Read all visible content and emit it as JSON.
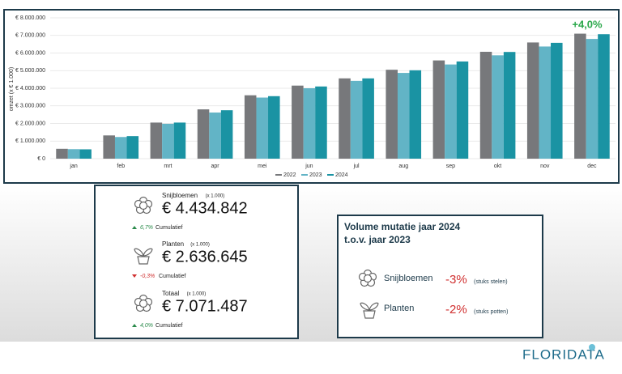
{
  "chart_data": {
    "type": "bar",
    "y_label": "omzet (x € 1.000)",
    "annotation": "+4,0%",
    "categories": [
      "jan",
      "feb",
      "mrt",
      "apr",
      "mei",
      "jun",
      "jul",
      "aug",
      "sep",
      "okt",
      "nov",
      "dec"
    ],
    "series": [
      {
        "name": "2022",
        "color": "#77787b",
        "values": [
          560000,
          1320000,
          2050000,
          2800000,
          3600000,
          4150000,
          4560000,
          5050000,
          5580000,
          6070000,
          6600000,
          7100000
        ]
      },
      {
        "name": "2023",
        "color": "#62b4c6",
        "values": [
          540000,
          1230000,
          1980000,
          2620000,
          3470000,
          4000000,
          4420000,
          4870000,
          5350000,
          5870000,
          6370000,
          6800000
        ]
      },
      {
        "name": "2024",
        "color": "#1a93a3",
        "values": [
          530000,
          1280000,
          2050000,
          2750000,
          3550000,
          4100000,
          4560000,
          5020000,
          5520000,
          6060000,
          6580000,
          7070000
        ]
      }
    ],
    "ylim": [
      0,
      8000000
    ],
    "yticks": [
      {
        "value": 0,
        "label": "€ 0"
      },
      {
        "value": 1000000,
        "label": "€ 1.000.000"
      },
      {
        "value": 2000000,
        "label": "€ 2.000.000"
      },
      {
        "value": 3000000,
        "label": "€ 3.000.000"
      },
      {
        "value": 4000000,
        "label": "€ 4.000.000"
      },
      {
        "value": 5000000,
        "label": "€ 5.000.000"
      },
      {
        "value": 6000000,
        "label": "€ 6.000.000"
      },
      {
        "value": 7000000,
        "label": "€ 7.000.000"
      },
      {
        "value": 8000000,
        "label": "€ 8.000.000"
      }
    ],
    "grid": true,
    "legend": "bottom"
  },
  "totals": [
    {
      "name": "Snijbloemen",
      "unit": "(x 1.000)",
      "value": "€ 4.434.842",
      "change": "6,7%",
      "note": "Cumulatief"
    },
    {
      "name": "Planten",
      "unit": "(x 1.000)",
      "value": "€ 2.636.645",
      "change": "-0,3%",
      "note": "Cumulatief"
    },
    {
      "name": "Totaal",
      "unit": "(x 1.000)",
      "value": "€ 7.071.487",
      "change": "4,0%",
      "note": "Cumulatief"
    }
  ],
  "volume": {
    "title": "Volume mutatie jaar 2024",
    "subtitle": "t.o.v. jaar 2023",
    "rows": [
      {
        "name": "Snijbloemen",
        "change": "-3%",
        "note": "(stuks stelen)"
      },
      {
        "name": "Planten",
        "change": "-2%",
        "note": "(stuks potten)"
      }
    ]
  },
  "logo": "FLORIDATA"
}
